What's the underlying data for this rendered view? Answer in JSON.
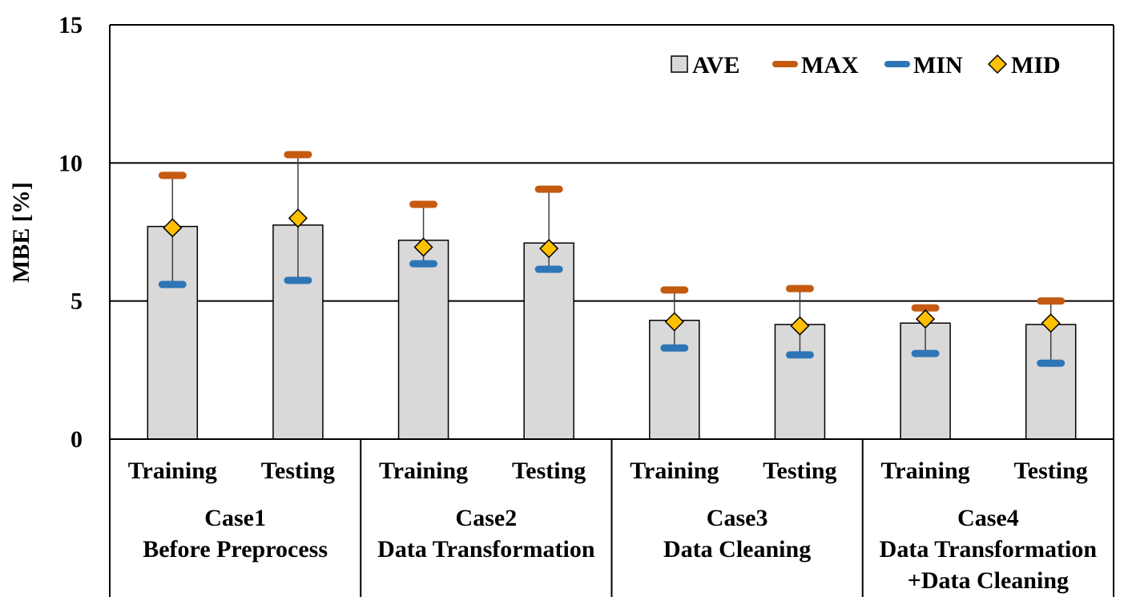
{
  "chart_data": {
    "type": "bar",
    "ylabel": "MBE [%]",
    "ylim": [
      0,
      15
    ],
    "yticks": [
      "0",
      "5",
      "10",
      "15"
    ],
    "grid": "horizontal at 5 and 10",
    "legend_position": "top-right",
    "legend": [
      {
        "key": "ave",
        "label": "AVE",
        "color": "#d9d9d9",
        "marker": "bar"
      },
      {
        "key": "max",
        "label": "MAX",
        "color": "#c55a11",
        "marker": "dash"
      },
      {
        "key": "min",
        "label": "MIN",
        "color": "#2e75b6",
        "marker": "dash"
      },
      {
        "key": "mid",
        "label": "MID",
        "color": "#ffc000",
        "marker": "diamond"
      }
    ],
    "groups": [
      {
        "name_line1": "Case1",
        "name_line2": "Before Preprocess",
        "name_line3": ""
      },
      {
        "name_line1": "Case2",
        "name_line2": "Data Transformation",
        "name_line3": ""
      },
      {
        "name_line1": "Case3",
        "name_line2": "Data Cleaning",
        "name_line3": ""
      },
      {
        "name_line1": "Case4",
        "name_line2": "Data Transformation",
        "name_line3": "+Data Cleaning"
      }
    ],
    "categories": [
      {
        "label": "Training",
        "group": 0,
        "ave": 7.7,
        "max": 9.55,
        "min": 5.6,
        "mid": 7.65
      },
      {
        "label": "Testing",
        "group": 0,
        "ave": 7.75,
        "max": 10.3,
        "min": 5.75,
        "mid": 8.0
      },
      {
        "label": "Training",
        "group": 1,
        "ave": 7.2,
        "max": 8.5,
        "min": 6.35,
        "mid": 6.95
      },
      {
        "label": "Testing",
        "group": 1,
        "ave": 7.1,
        "max": 9.05,
        "min": 6.15,
        "mid": 6.9
      },
      {
        "label": "Training",
        "group": 2,
        "ave": 4.3,
        "max": 5.4,
        "min": 3.3,
        "mid": 4.25
      },
      {
        "label": "Testing",
        "group": 2,
        "ave": 4.15,
        "max": 5.45,
        "min": 3.05,
        "mid": 4.1
      },
      {
        "label": "Training",
        "group": 3,
        "ave": 4.2,
        "max": 4.75,
        "min": 3.1,
        "mid": 4.35
      },
      {
        "label": "Testing",
        "group": 3,
        "ave": 4.15,
        "max": 5.0,
        "min": 2.75,
        "mid": 4.2
      }
    ]
  }
}
